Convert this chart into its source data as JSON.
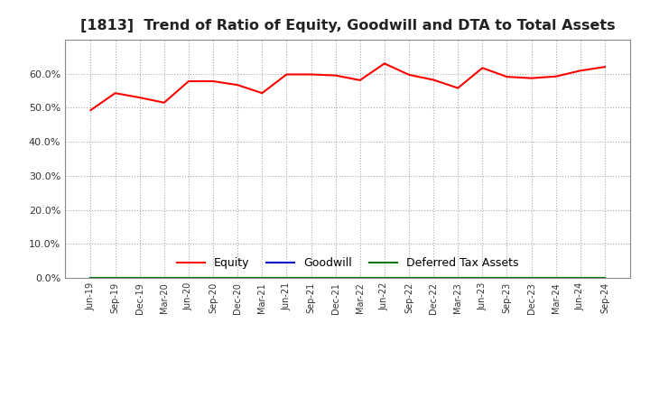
{
  "title": "[1813]  Trend of Ratio of Equity, Goodwill and DTA to Total Assets",
  "x_labels": [
    "Jun-19",
    "Sep-19",
    "Dec-19",
    "Mar-20",
    "Jun-20",
    "Sep-20",
    "Dec-20",
    "Mar-21",
    "Jun-21",
    "Sep-21",
    "Dec-21",
    "Mar-22",
    "Jun-22",
    "Sep-22",
    "Dec-22",
    "Mar-23",
    "Jun-23",
    "Sep-23",
    "Dec-23",
    "Mar-24",
    "Jun-24",
    "Sep-24"
  ],
  "equity": [
    0.493,
    0.543,
    0.53,
    0.515,
    0.578,
    0.578,
    0.567,
    0.543,
    0.598,
    0.598,
    0.595,
    0.581,
    0.63,
    0.597,
    0.582,
    0.558,
    0.617,
    0.591,
    0.587,
    0.592,
    0.609,
    0.62
  ],
  "goodwill": [
    0.0,
    0.0,
    0.0,
    0.0,
    0.0,
    0.0,
    0.0,
    0.0,
    0.0,
    0.0,
    0.0,
    0.0,
    0.0,
    0.0,
    0.0,
    0.0,
    0.0,
    0.0,
    0.0,
    0.0,
    0.0,
    0.0
  ],
  "dta": [
    0.0,
    0.0,
    0.0,
    0.0,
    0.0,
    0.0,
    0.0,
    0.0,
    0.0,
    0.0,
    0.0,
    0.0,
    0.0,
    0.0,
    0.0,
    0.0,
    0.0,
    0.0,
    0.0,
    0.0,
    0.0,
    0.0
  ],
  "equity_color": "#ff0000",
  "goodwill_color": "#0000cc",
  "dta_color": "#007700",
  "ylim": [
    0.0,
    0.7
  ],
  "yticks": [
    0.0,
    0.1,
    0.2,
    0.3,
    0.4,
    0.5,
    0.6
  ],
  "background_color": "#ffffff",
  "plot_background": "#ffffff",
  "grid_color": "#aaaaaa",
  "title_fontsize": 11.5,
  "legend_labels": [
    "Equity",
    "Goodwill",
    "Deferred Tax Assets"
  ]
}
